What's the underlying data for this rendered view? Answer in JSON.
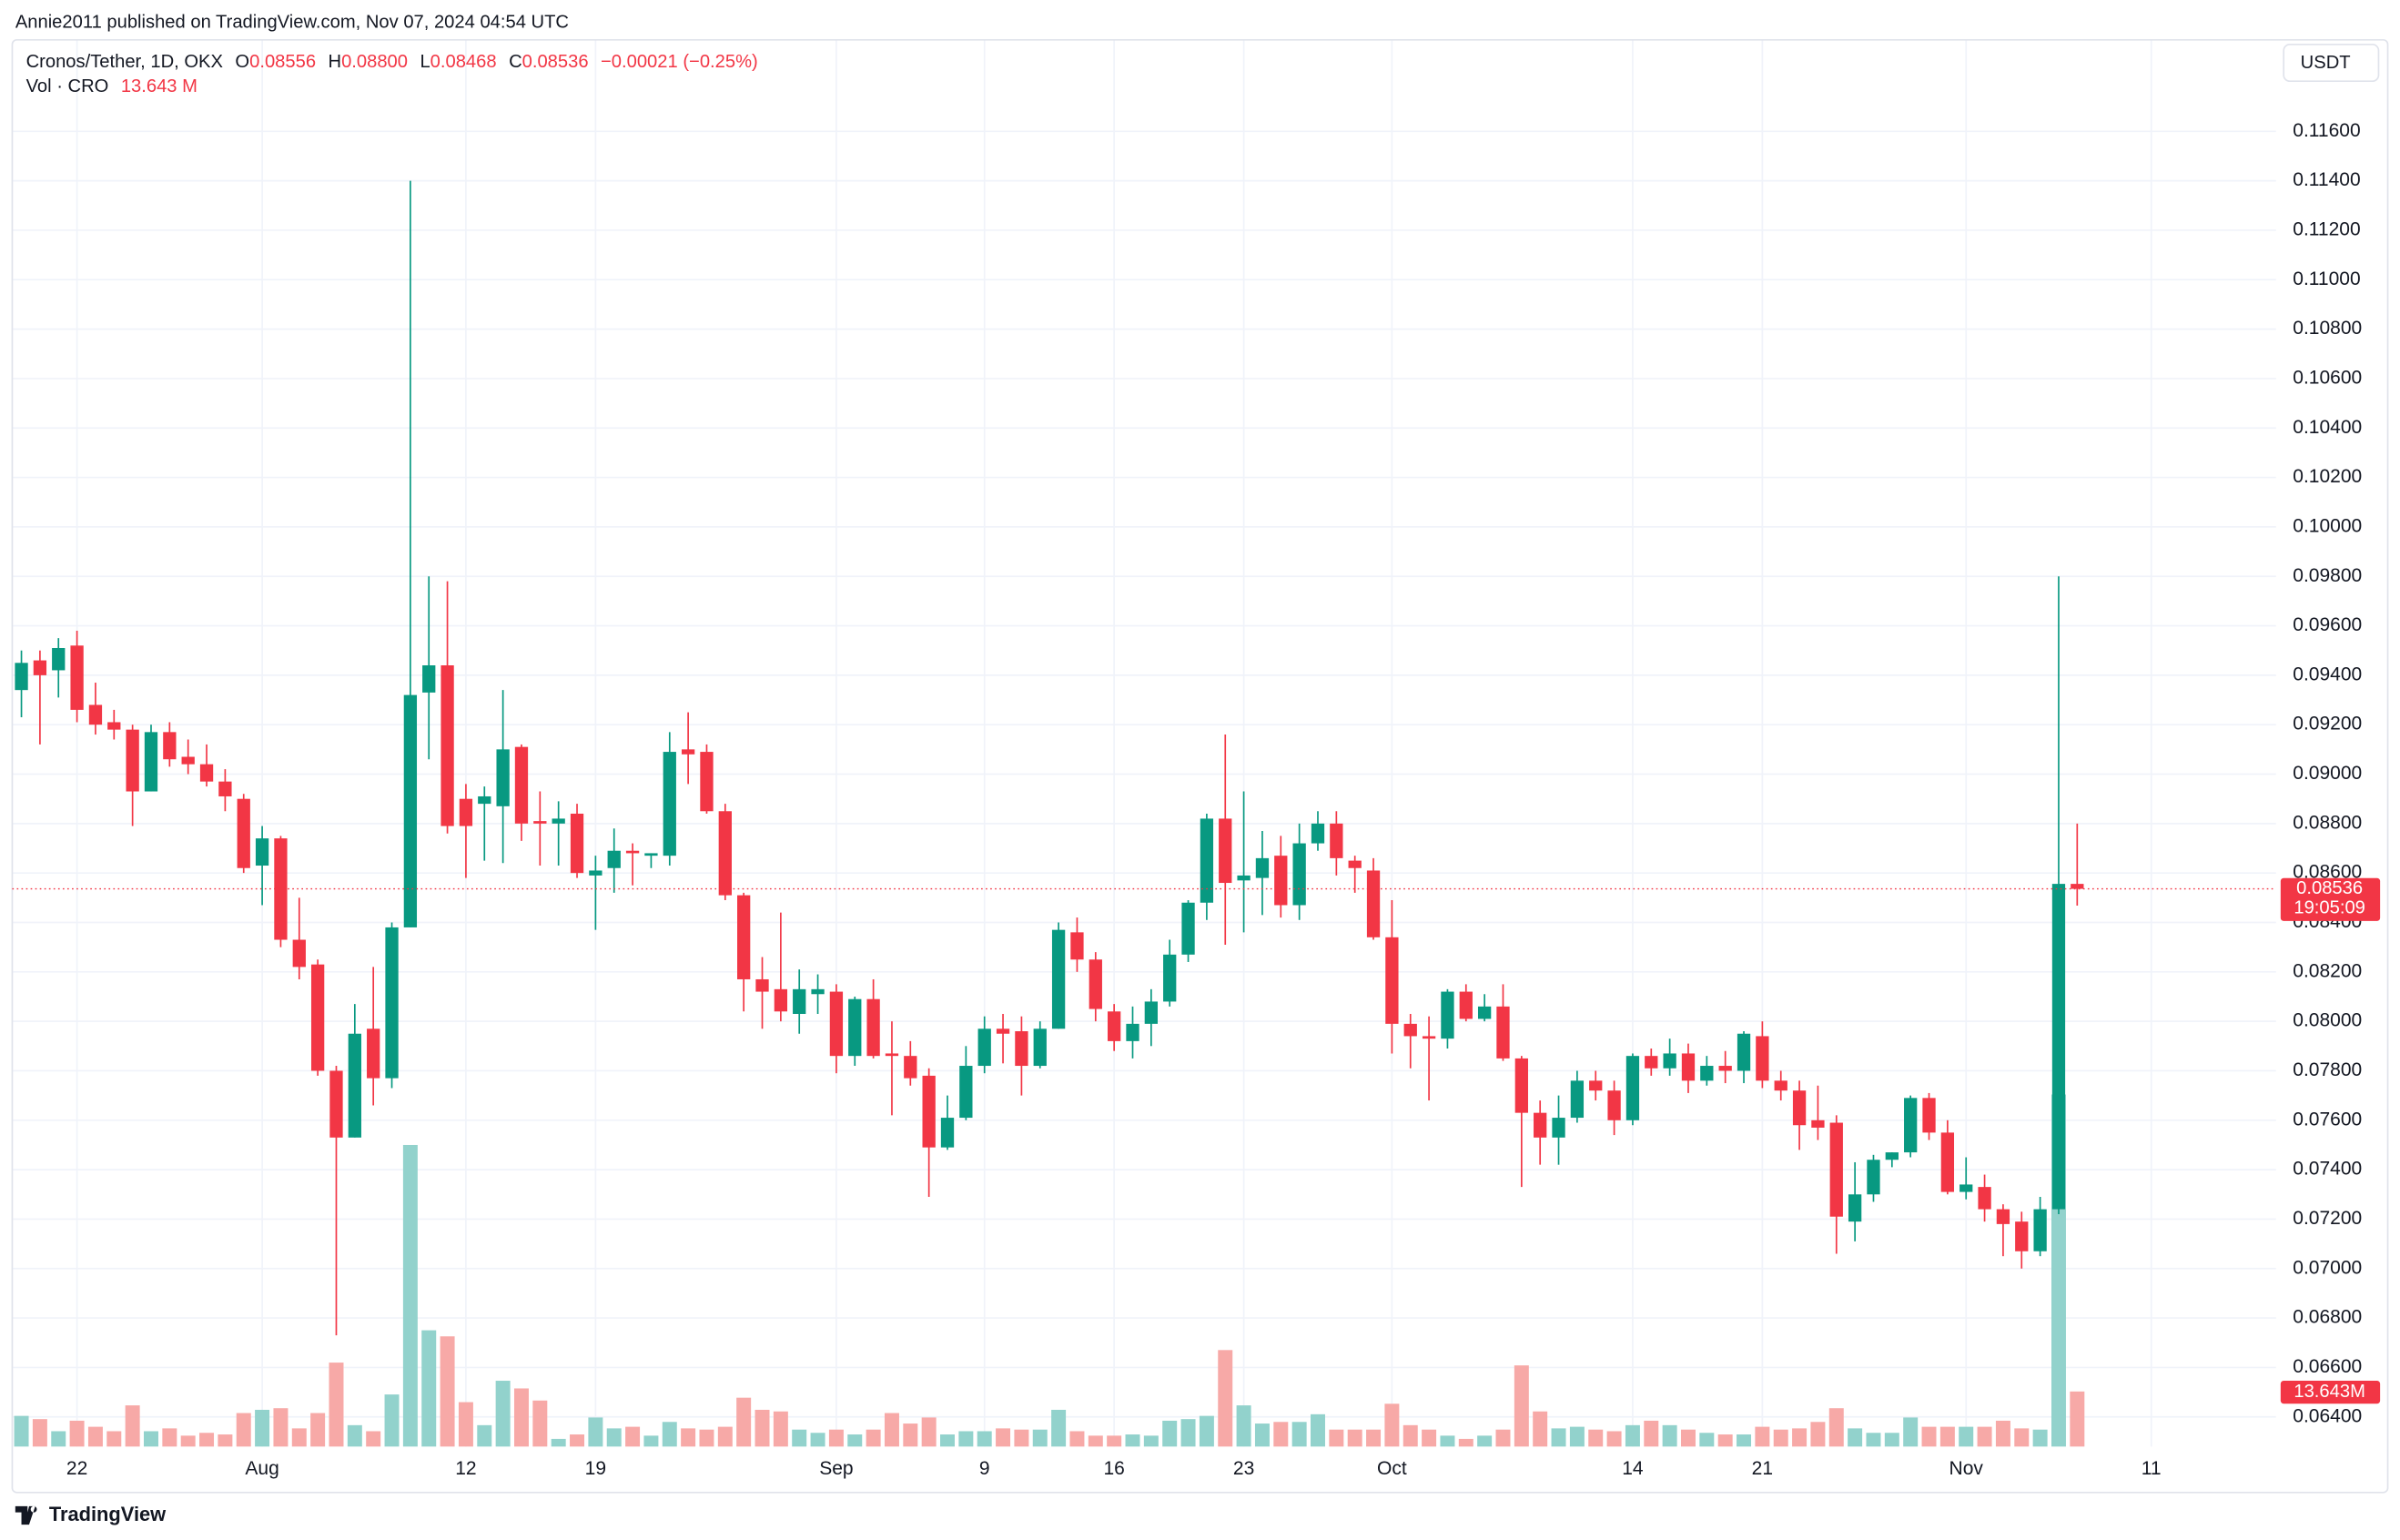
{
  "header": {
    "published": "Annie2011 published on TradingView.com, Nov 07, 2024 04:54 UTC"
  },
  "legend": {
    "symbol": "Cronos/Tether, 1D, OKX",
    "open_label": "O",
    "open": "0.08556",
    "high_label": "H",
    "high": "0.08800",
    "low_label": "L",
    "low": "0.08468",
    "close_label": "C",
    "close": "0.08536",
    "change": "−0.00021 (−0.25%)",
    "volume_title": "Vol · CRO",
    "volume": "13.643 M"
  },
  "currency": "USDT",
  "footer": {
    "brand": "TradingView"
  },
  "chart_data": {
    "type": "candlestick",
    "x": [
      "07-19",
      "07-20",
      "07-21",
      "07-22",
      "07-23",
      "07-24",
      "07-25",
      "07-26",
      "07-27",
      "07-28",
      "07-29",
      "07-30",
      "07-31",
      "08-01",
      "08-02",
      "08-03",
      "08-04",
      "08-05",
      "08-06",
      "08-07",
      "08-08",
      "08-09",
      "08-10",
      "08-11",
      "08-12",
      "08-13",
      "08-14",
      "08-15",
      "08-16",
      "08-17",
      "08-18",
      "08-19",
      "08-20",
      "08-21",
      "08-22",
      "08-23",
      "08-24",
      "08-25",
      "08-26",
      "08-27",
      "08-28",
      "08-29",
      "08-30",
      "08-31",
      "09-01",
      "09-02",
      "09-03",
      "09-04",
      "09-05",
      "09-06",
      "09-07",
      "09-08",
      "09-09",
      "09-10",
      "09-11",
      "09-12",
      "09-13",
      "09-14",
      "09-15",
      "09-16",
      "09-17",
      "09-18",
      "09-19",
      "09-20",
      "09-21",
      "09-22",
      "09-23",
      "09-24",
      "09-25",
      "09-26",
      "09-27",
      "09-28",
      "09-29",
      "09-30",
      "10-01",
      "10-02",
      "10-03",
      "10-04",
      "10-05",
      "10-06",
      "10-07",
      "10-08",
      "10-09",
      "10-10",
      "10-11",
      "10-12",
      "10-13",
      "10-14",
      "10-15",
      "10-16",
      "10-17",
      "10-18",
      "10-19",
      "10-20",
      "10-21",
      "10-22",
      "10-23",
      "10-24",
      "10-25",
      "10-26",
      "10-27",
      "10-28",
      "10-29",
      "10-30",
      "10-31",
      "11-01",
      "11-02",
      "11-03",
      "11-04",
      "11-05",
      "11-06",
      "11-07"
    ],
    "open": [
      0.0934,
      0.0946,
      0.0942,
      0.0952,
      0.0928,
      0.0921,
      0.0918,
      0.0893,
      0.0917,
      0.0907,
      0.0904,
      0.0897,
      0.089,
      0.0863,
      0.0874,
      0.0833,
      0.0823,
      0.078,
      0.0753,
      0.0797,
      0.0777,
      0.0838,
      0.0933,
      0.0944,
      0.089,
      0.0888,
      0.0887,
      0.0911,
      0.0881,
      0.088,
      0.0884,
      0.0859,
      0.0862,
      0.0869,
      0.0867,
      0.0867,
      0.091,
      0.0909,
      0.0885,
      0.0851,
      0.0817,
      0.0813,
      0.0803,
      0.0811,
      0.0812,
      0.0786,
      0.0809,
      0.0787,
      0.0786,
      0.0778,
      0.0749,
      0.0761,
      0.0782,
      0.0797,
      0.0796,
      0.0782,
      0.0797,
      0.0836,
      0.0825,
      0.0804,
      0.0792,
      0.0799,
      0.0808,
      0.0827,
      0.0848,
      0.0882,
      0.0857,
      0.0858,
      0.0867,
      0.0847,
      0.0872,
      0.088,
      0.0865,
      0.0861,
      0.0834,
      0.0799,
      0.0794,
      0.0793,
      0.0812,
      0.0801,
      0.0806,
      0.0785,
      0.0763,
      0.0753,
      0.0761,
      0.0776,
      0.0772,
      0.076,
      0.0786,
      0.0781,
      0.0787,
      0.0776,
      0.0782,
      0.078,
      0.0794,
      0.0776,
      0.0772,
      0.076,
      0.0759,
      0.0719,
      0.073,
      0.0744,
      0.0747,
      0.0769,
      0.0755,
      0.0731,
      0.0733,
      0.0724,
      0.0719,
      0.0707,
      0.0724,
      0.08556
    ],
    "high": [
      0.095,
      0.095,
      0.0955,
      0.0958,
      0.0937,
      0.0926,
      0.092,
      0.092,
      0.0921,
      0.0914,
      0.0912,
      0.0902,
      0.0892,
      0.0879,
      0.0875,
      0.085,
      0.0825,
      0.0782,
      0.0807,
      0.0822,
      0.084,
      0.114,
      0.098,
      0.0978,
      0.0896,
      0.0895,
      0.0934,
      0.0912,
      0.0893,
      0.0889,
      0.0888,
      0.0867,
      0.0878,
      0.0872,
      0.0868,
      0.0917,
      0.0925,
      0.0912,
      0.0888,
      0.0852,
      0.0826,
      0.0844,
      0.0821,
      0.0819,
      0.0815,
      0.081,
      0.0817,
      0.08,
      0.0792,
      0.0781,
      0.077,
      0.079,
      0.0802,
      0.0803,
      0.0802,
      0.08,
      0.084,
      0.0842,
      0.0828,
      0.0807,
      0.0806,
      0.0813,
      0.0833,
      0.0849,
      0.0884,
      0.0916,
      0.0893,
      0.0877,
      0.0875,
      0.088,
      0.0885,
      0.0885,
      0.0867,
      0.0866,
      0.0849,
      0.0803,
      0.0802,
      0.0813,
      0.0815,
      0.0811,
      0.0815,
      0.0786,
      0.0768,
      0.077,
      0.078,
      0.078,
      0.0776,
      0.0787,
      0.0789,
      0.0793,
      0.0791,
      0.0786,
      0.0788,
      0.0796,
      0.08,
      0.078,
      0.0776,
      0.0774,
      0.0762,
      0.0743,
      0.0746,
      0.0747,
      0.077,
      0.0771,
      0.076,
      0.0745,
      0.0738,
      0.0726,
      0.0723,
      0.0729,
      0.098,
      0.088
    ],
    "low": [
      0.0923,
      0.0912,
      0.0931,
      0.0921,
      0.0916,
      0.0914,
      0.0879,
      0.0893,
      0.0903,
      0.09,
      0.0895,
      0.0885,
      0.086,
      0.0847,
      0.083,
      0.0817,
      0.0778,
      0.0673,
      0.0753,
      0.0766,
      0.0773,
      0.0838,
      0.0906,
      0.0876,
      0.0858,
      0.0865,
      0.0864,
      0.0873,
      0.0863,
      0.0863,
      0.0858,
      0.0837,
      0.0852,
      0.0855,
      0.0862,
      0.0863,
      0.0896,
      0.0884,
      0.0849,
      0.0804,
      0.0797,
      0.08,
      0.0795,
      0.0803,
      0.0779,
      0.0782,
      0.0785,
      0.0762,
      0.0774,
      0.0729,
      0.0748,
      0.076,
      0.0779,
      0.0783,
      0.077,
      0.0781,
      0.0797,
      0.082,
      0.08,
      0.0788,
      0.0785,
      0.079,
      0.0806,
      0.0824,
      0.0841,
      0.0831,
      0.0836,
      0.0843,
      0.0842,
      0.0841,
      0.0869,
      0.0859,
      0.0852,
      0.0833,
      0.0787,
      0.0781,
      0.0768,
      0.0789,
      0.08,
      0.08,
      0.0784,
      0.0733,
      0.0742,
      0.0742,
      0.0759,
      0.0768,
      0.0754,
      0.0758,
      0.0778,
      0.0778,
      0.0771,
      0.0774,
      0.0775,
      0.0775,
      0.0773,
      0.0768,
      0.0748,
      0.0752,
      0.0706,
      0.0711,
      0.0727,
      0.0741,
      0.0745,
      0.0752,
      0.073,
      0.0728,
      0.0719,
      0.0705,
      0.07,
      0.0705,
      0.0722,
      0.08468
    ],
    "close": [
      0.0945,
      0.094,
      0.0951,
      0.0926,
      0.092,
      0.0918,
      0.0893,
      0.0917,
      0.0906,
      0.0904,
      0.0897,
      0.0891,
      0.0862,
      0.0874,
      0.0833,
      0.0822,
      0.078,
      0.0753,
      0.0795,
      0.0777,
      0.0838,
      0.0932,
      0.0944,
      0.0879,
      0.0879,
      0.0891,
      0.091,
      0.088,
      0.088,
      0.0882,
      0.086,
      0.0861,
      0.0869,
      0.0868,
      0.0868,
      0.0909,
      0.0908,
      0.0885,
      0.0851,
      0.0817,
      0.0812,
      0.0804,
      0.0813,
      0.0813,
      0.0786,
      0.0809,
      0.0786,
      0.0786,
      0.0777,
      0.0749,
      0.0761,
      0.0782,
      0.0797,
      0.0795,
      0.0782,
      0.0797,
      0.0837,
      0.0825,
      0.0805,
      0.0792,
      0.0799,
      0.0808,
      0.0827,
      0.0848,
      0.0882,
      0.0856,
      0.0859,
      0.0866,
      0.0847,
      0.0872,
      0.088,
      0.0866,
      0.0862,
      0.0834,
      0.0799,
      0.0794,
      0.0793,
      0.0812,
      0.0801,
      0.0806,
      0.0785,
      0.0763,
      0.0753,
      0.0761,
      0.0776,
      0.0772,
      0.076,
      0.0786,
      0.0781,
      0.0787,
      0.0776,
      0.0782,
      0.078,
      0.0795,
      0.0776,
      0.0772,
      0.0758,
      0.0757,
      0.0721,
      0.073,
      0.0744,
      0.0747,
      0.0769,
      0.0755,
      0.0731,
      0.0734,
      0.0724,
      0.0718,
      0.0707,
      0.0724,
      0.08556,
      0.08536
    ],
    "volume": [
      7.6,
      6.8,
      3.8,
      6.4,
      4.9,
      3.8,
      10.2,
      3.8,
      4.5,
      2.7,
      3.4,
      3.0,
      8.3,
      9.1,
      9.5,
      4.5,
      8.3,
      20.8,
      5.3,
      3.8,
      12.9,
      74.7,
      28.8,
      27.3,
      11.0,
      5.3,
      16.3,
      14.4,
      11.4,
      1.9,
      3.0,
      7.2,
      4.5,
      4.9,
      2.7,
      6.1,
      4.5,
      4.2,
      4.9,
      12.1,
      9.1,
      8.7,
      4.2,
      3.4,
      4.2,
      3.0,
      4.2,
      8.3,
      5.7,
      7.2,
      3.0,
      3.8,
      3.8,
      4.5,
      4.2,
      4.2,
      9.1,
      3.8,
      2.7,
      2.7,
      3.0,
      2.7,
      6.4,
      6.8,
      7.6,
      23.9,
      10.2,
      5.7,
      6.1,
      6.1,
      8.0,
      4.2,
      4.2,
      4.2,
      10.6,
      5.3,
      4.2,
      2.7,
      1.9,
      2.7,
      4.2,
      20.1,
      8.7,
      4.5,
      4.9,
      4.2,
      3.8,
      5.3,
      6.4,
      5.3,
      4.2,
      3.4,
      3.0,
      3.0,
      4.9,
      4.2,
      4.5,
      6.1,
      9.5,
      4.5,
      3.4,
      3.4,
      7.2,
      4.9,
      4.9,
      4.9,
      4.9,
      6.4,
      4.5,
      4.2,
      87.2,
      13.643
    ],
    "up_color": "#089981",
    "down_color": "#f23645",
    "volume_up_color": "#92d2cc",
    "volume_down_color": "#f7a9a7",
    "ylim": [
      0.0628,
      0.1197
    ],
    "yticks": [
      {
        "value": 0.064,
        "label": "0.06400"
      },
      {
        "value": 0.066,
        "label": "0.06600"
      },
      {
        "value": 0.068,
        "label": "0.06800"
      },
      {
        "value": 0.07,
        "label": "0.07000"
      },
      {
        "value": 0.072,
        "label": "0.07200"
      },
      {
        "value": 0.074,
        "label": "0.07400"
      },
      {
        "value": 0.076,
        "label": "0.07600"
      },
      {
        "value": 0.078,
        "label": "0.07800"
      },
      {
        "value": 0.08,
        "label": "0.08000"
      },
      {
        "value": 0.082,
        "label": "0.08200"
      },
      {
        "value": 0.084,
        "label": "0.08400"
      },
      {
        "value": 0.086,
        "label": "0.08600"
      },
      {
        "value": 0.088,
        "label": "0.08800"
      },
      {
        "value": 0.09,
        "label": "0.09000"
      },
      {
        "value": 0.092,
        "label": "0.09200"
      },
      {
        "value": 0.094,
        "label": "0.09400"
      },
      {
        "value": 0.096,
        "label": "0.09600"
      },
      {
        "value": 0.098,
        "label": "0.09800"
      },
      {
        "value": 0.1,
        "label": "0.10000"
      },
      {
        "value": 0.102,
        "label": "0.10200"
      },
      {
        "value": 0.104,
        "label": "0.10400"
      },
      {
        "value": 0.106,
        "label": "0.10600"
      },
      {
        "value": 0.108,
        "label": "0.10800"
      },
      {
        "value": 0.11,
        "label": "0.11000"
      },
      {
        "value": 0.112,
        "label": "0.11200"
      },
      {
        "value": 0.114,
        "label": "0.11400"
      },
      {
        "value": 0.116,
        "label": "0.11600"
      }
    ],
    "xticks": [
      {
        "value": "07-22",
        "label": "22"
      },
      {
        "value": "08-01",
        "label": "Aug"
      },
      {
        "value": "08-12",
        "label": "12"
      },
      {
        "value": "08-19",
        "label": "19"
      },
      {
        "value": "09-01",
        "label": "Sep"
      },
      {
        "value": "09-09",
        "label": "9"
      },
      {
        "value": "09-16",
        "label": "16"
      },
      {
        "value": "09-23",
        "label": "23"
      },
      {
        "value": "10-01",
        "label": "Oct"
      },
      {
        "value": "10-14",
        "label": "14"
      },
      {
        "value": "10-21",
        "label": "21"
      },
      {
        "value": "11-01",
        "label": "Nov"
      },
      {
        "value": "11-11",
        "label": "11"
      }
    ],
    "grid": true,
    "last_price_label": "0.08536",
    "countdown": "19:05:09",
    "last_volume_label": "13.643M"
  }
}
